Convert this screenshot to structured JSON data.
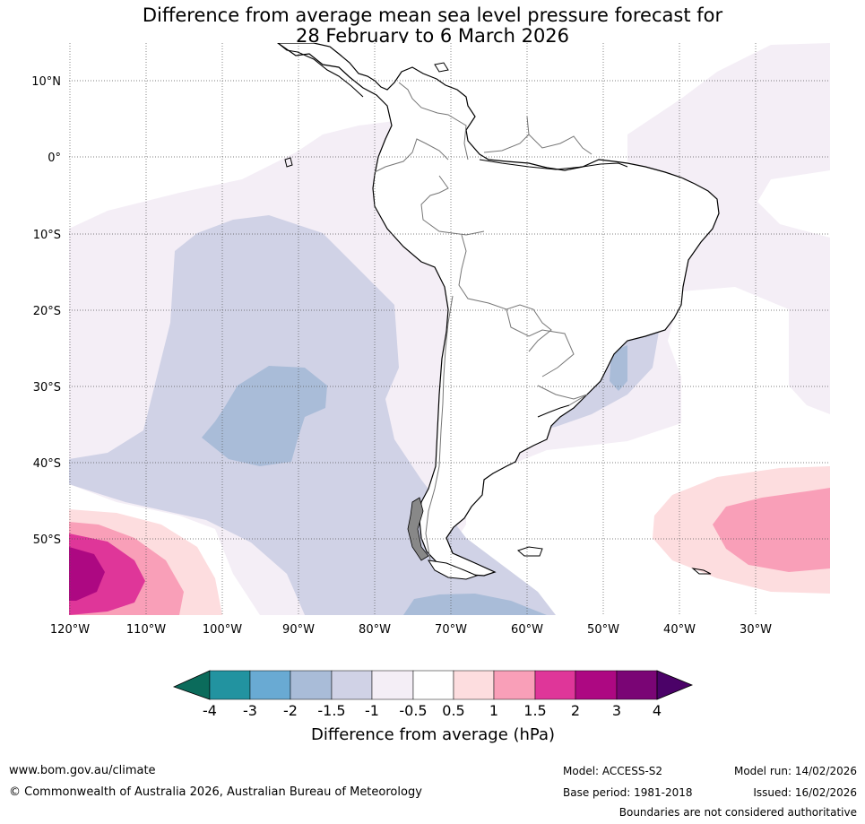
{
  "title": {
    "line1": "Difference from average mean sea level pressure forecast for",
    "line2": "28 February to 6 March 2026"
  },
  "map": {
    "lat_labels": [
      "10°N",
      "0°",
      "10°S",
      "20°S",
      "30°S",
      "40°S",
      "50°S"
    ],
    "lon_labels": [
      "120°W",
      "110°W",
      "100°W",
      "90°W",
      "80°W",
      "70°W",
      "60°W",
      "50°W",
      "40°W",
      "30°W"
    ]
  },
  "colorbar": {
    "label": "Difference from average (hPa)",
    "ticks": [
      "-4",
      "-3",
      "-2",
      "-1.5",
      "-1",
      "-0.5",
      "0.5",
      "1",
      "1.5",
      "2",
      "3",
      "4"
    ],
    "colors": [
      "#0b6b5b",
      "#2293a0",
      "#69aad3",
      "#a9bcd8",
      "#d0d2e6",
      "#f4eef6",
      "#ffffff",
      "#fddddf",
      "#f99fb8",
      "#df3699",
      "#ad0882",
      "#7a0575",
      "#4b0268"
    ]
  },
  "footer": {
    "website": "www.bom.gov.au/climate",
    "copyright": "© Commonwealth of Australia 2026, Australian Bureau of Meteorology",
    "model": "Model: ACCESS-S2",
    "base_period": "Base period: 1981-2018",
    "model_run": "Model run: 14/02/2026",
    "issued": "Issued: 16/02/2026",
    "disclaimer": "Boundaries are not considered authoritative"
  }
}
